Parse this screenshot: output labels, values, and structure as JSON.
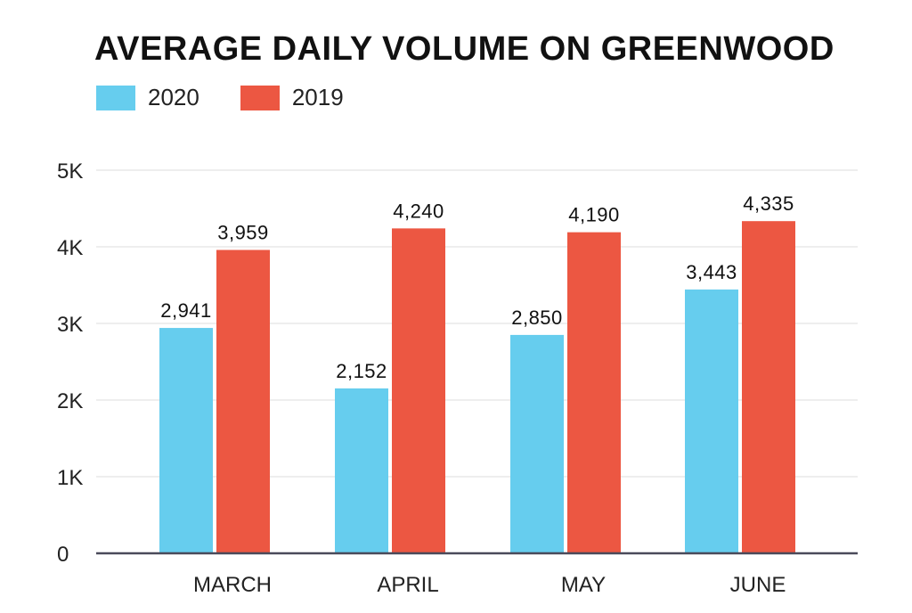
{
  "chart_data": {
    "type": "bar",
    "title": "AVERAGE DAILY VOLUME ON GREENWOOD",
    "categories": [
      "MARCH",
      "APRIL",
      "MAY",
      "JUNE"
    ],
    "series": [
      {
        "name": "2020",
        "color": "#66cdee",
        "values": [
          2941,
          2152,
          2850,
          3443
        ],
        "labels": [
          "2,941",
          "2,152",
          "2,850",
          "3,443"
        ]
      },
      {
        "name": "2019",
        "color": "#ec5742",
        "values": [
          3959,
          4240,
          4190,
          4335
        ],
        "labels": [
          "3,959",
          "4,240",
          "4,190",
          "4,335"
        ]
      }
    ],
    "ylim": [
      0,
      5000
    ],
    "yticks": [
      0,
      1000,
      2000,
      3000,
      4000,
      5000
    ],
    "ytick_labels": [
      "0",
      "1K",
      "2K",
      "3K",
      "4K",
      "5K"
    ],
    "grid": true,
    "legend_position": "top-left"
  }
}
